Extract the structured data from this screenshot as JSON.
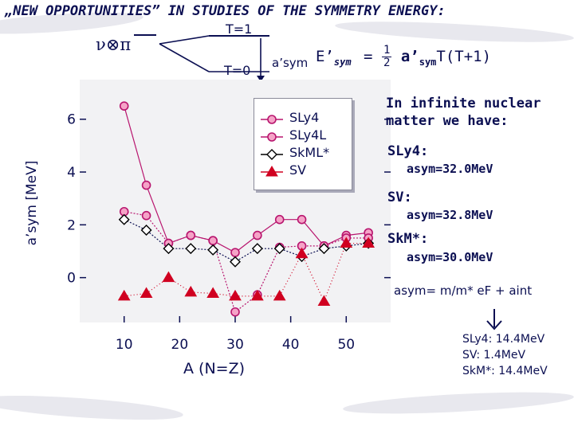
{
  "header": {
    "title": "„NEW OPPORTUNITIES” IN STUDIES OF THE SYMMETRY ENERGY:",
    "nu_pi": "ν⊗π",
    "t1": "T=1",
    "t0": "T=0",
    "asym_prime": "a’sym",
    "formula_lhs": "E’",
    "formula_sub": "sym",
    "formula_eq": "=",
    "formula_num": "1",
    "formula_den": "2",
    "formula_rhs_a": "a’",
    "formula_rhs_sub": "sym",
    "formula_rhs_t": "T(T+1)"
  },
  "right_panel": {
    "intro_line1": "In infinite nuclear",
    "intro_line2": "matter we have:",
    "sly4_label": "SLy4:",
    "sly4_value": "asym=32.0MeV",
    "sv_label": "SV:",
    "sv_value": "asym=32.8MeV",
    "skm_label": "SkM*:",
    "skm_value": "asym=30.0MeV",
    "asym_formula": "asym= m/m* eF + aint",
    "sly4_aint": "SLy4: 14.4MeV",
    "sv_aint": "SV: 1.4MeV",
    "skm_aint": "SkM*: 14.4MeV"
  },
  "colors": {
    "navy": "#0b0f52",
    "magenta": "#b8156e",
    "red": "#d00020",
    "marker_fill": "#f5a3c7",
    "panel": "#f2f2f4"
  },
  "chart_data": {
    "type": "scatter",
    "xlabel": "A (N=Z)",
    "ylabel": "a’sym [MeV]",
    "xlim": [
      2,
      58
    ],
    "ylim": [
      -1.7,
      7.5
    ],
    "xticks": [
      10,
      20,
      30,
      40,
      50
    ],
    "yticks": [
      0,
      2,
      4,
      6
    ],
    "legend_position": "top-right",
    "series": [
      {
        "name": "SLy4",
        "marker": "circle",
        "x": [
          10,
          14,
          18,
          22,
          26,
          30,
          34,
          38,
          42,
          46,
          50,
          54
        ],
        "y": [
          6.5,
          3.5,
          1.3,
          1.6,
          1.4,
          0.95,
          1.6,
          2.2,
          2.2,
          1.2,
          1.6,
          1.7
        ]
      },
      {
        "name": "SLy4L",
        "marker": "circle",
        "x": [
          10,
          14,
          18,
          22,
          26,
          30,
          34,
          38,
          42,
          46,
          50,
          54
        ],
        "y": [
          2.5,
          2.35,
          1.3,
          1.6,
          1.4,
          -1.3,
          -0.65,
          1.15,
          1.2,
          1.2,
          1.5,
          1.5
        ]
      },
      {
        "name": "SkML*",
        "marker": "diamond",
        "x": [
          10,
          14,
          18,
          22,
          26,
          30,
          34,
          38,
          42,
          46,
          50,
          54
        ],
        "y": [
          2.2,
          1.8,
          1.1,
          1.1,
          1.05,
          0.6,
          1.1,
          1.1,
          0.8,
          1.1,
          1.2,
          1.3
        ]
      },
      {
        "name": "SV",
        "marker": "triangle",
        "x": [
          10,
          14,
          18,
          22,
          26,
          30,
          34,
          38,
          42,
          46,
          50,
          54
        ],
        "y": [
          -0.7,
          -0.6,
          0.0,
          -0.55,
          -0.6,
          -0.7,
          -0.7,
          -0.7,
          0.9,
          -0.9,
          1.3,
          1.3
        ]
      }
    ]
  }
}
